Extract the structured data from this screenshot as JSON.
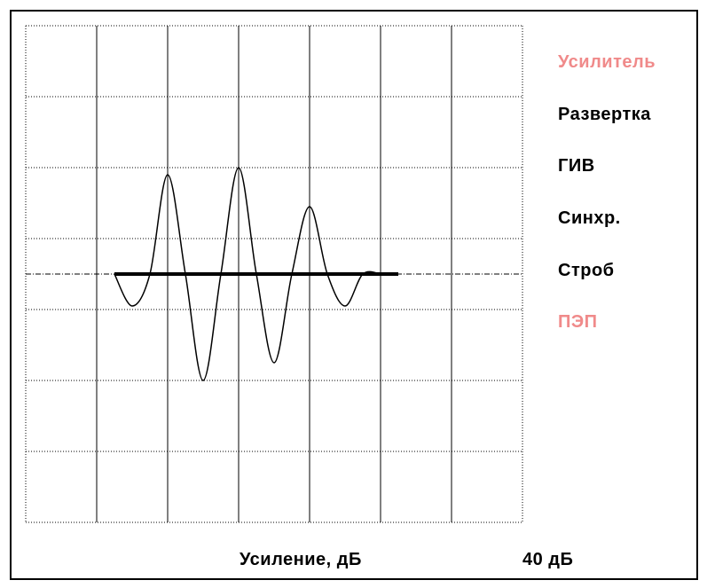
{
  "menu": {
    "items": [
      {
        "id": "amplifier",
        "label": "Усилитель",
        "color": "#f08a8a"
      },
      {
        "id": "sweep",
        "label": "Развертка",
        "color": "#000000"
      },
      {
        "id": "giv",
        "label": "ГИВ",
        "color": "#000000"
      },
      {
        "id": "sync",
        "label": "Синхр.",
        "color": "#000000"
      },
      {
        "id": "strobe",
        "label": "Строб",
        "color": "#000000"
      },
      {
        "id": "pep",
        "label": "ПЭП",
        "color": "#f08a8a"
      }
    ]
  },
  "status": {
    "gain_label": "Усиление, дБ",
    "gain_value": "40 дБ"
  },
  "chart_data": {
    "type": "line",
    "grid": true,
    "grid_divisions": {
      "x": 7,
      "y": 7
    },
    "series": [
      {
        "color": "#000000",
        "x": [
          1.25,
          1.5,
          1.75,
          2.0,
          2.25,
          2.5,
          2.75,
          3.0,
          3.25,
          3.5,
          3.75,
          4.0,
          4.25,
          4.5,
          4.75,
          5.0
        ],
        "y": [
          0.0,
          -0.45,
          0.0,
          1.4,
          0.0,
          -1.5,
          0.0,
          1.5,
          0.0,
          -1.25,
          0.0,
          0.95,
          0.0,
          -0.45,
          0.0,
          0.0
        ]
      }
    ],
    "gate": {
      "x_start": 1.25,
      "x_end": 5.25,
      "level": 0.0
    }
  }
}
